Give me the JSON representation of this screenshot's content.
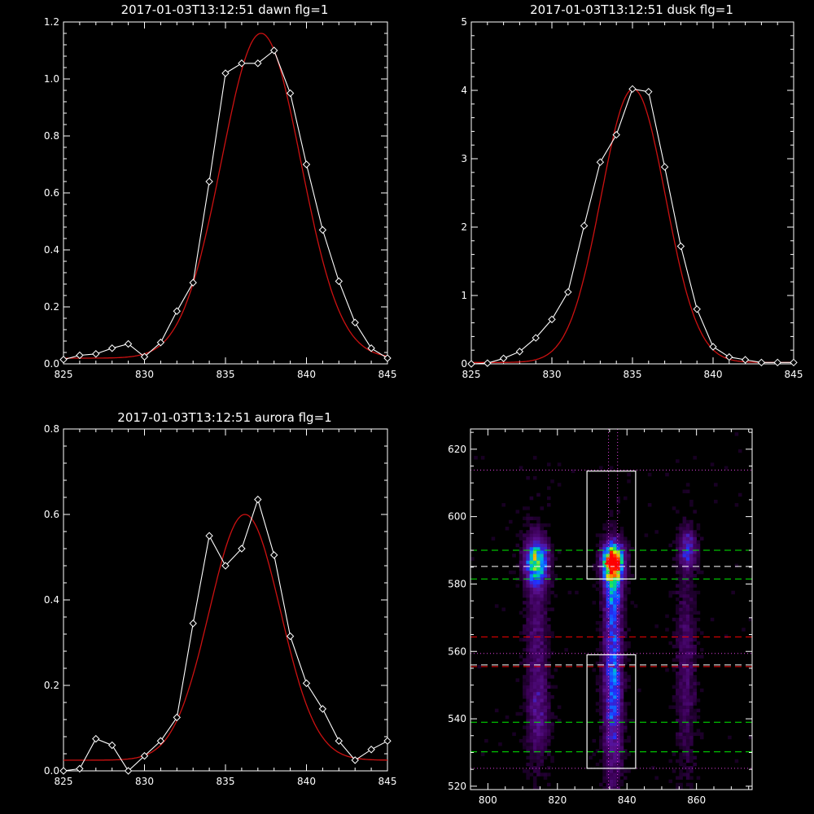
{
  "colors": {
    "background": "#000000",
    "axes": "#ffffff",
    "observed": "#ffffff",
    "fit": "#cc1111"
  },
  "chart_data": [
    {
      "type": "line",
      "title": "2017-01-03T13:12:51 dawn flg=1",
      "xlim": [
        825,
        845
      ],
      "ylim": [
        0,
        1.2
      ],
      "xticks": [
        "825",
        "830",
        "835",
        "840",
        "845"
      ],
      "yticks": [
        "0.0",
        "0.2",
        "0.4",
        "0.6",
        "0.8",
        "1.0",
        "1.2"
      ],
      "series": [
        {
          "role": "observed",
          "color": "#ffffff",
          "marker": "diamond",
          "x": [
            825,
            826,
            827,
            828,
            829,
            830,
            831,
            832,
            833,
            834,
            835,
            836,
            837,
            838,
            839,
            840,
            841,
            842,
            843,
            844,
            845
          ],
          "y": [
            0.015,
            0.03,
            0.035,
            0.055,
            0.07,
            0.025,
            0.075,
            0.185,
            0.285,
            0.64,
            1.02,
            1.055,
            1.055,
            1.1,
            0.95,
            0.7,
            0.47,
            0.29,
            0.145,
            0.055,
            0.02
          ]
        },
        {
          "role": "fit",
          "color": "#cc1111",
          "model": "gaussian",
          "amplitude": 1.14,
          "center": 837.2,
          "sigma": 2.45,
          "baseline": 0.02
        }
      ]
    },
    {
      "type": "line",
      "title": "2017-01-03T13:12:51 dusk flg=1",
      "xlim": [
        825,
        845
      ],
      "ylim": [
        0,
        5
      ],
      "xticks": [
        "825",
        "830",
        "835",
        "840",
        "845"
      ],
      "yticks": [
        "0",
        "1",
        "2",
        "3",
        "4",
        "5"
      ],
      "series": [
        {
          "role": "observed",
          "color": "#ffffff",
          "marker": "diamond",
          "x": [
            825,
            826,
            827,
            828,
            829,
            830,
            831,
            832,
            833,
            834,
            835,
            836,
            837,
            838,
            839,
            840,
            841,
            842,
            843,
            844,
            845
          ],
          "y": [
            0.0,
            0.01,
            0.08,
            0.18,
            0.38,
            0.65,
            1.05,
            2.02,
            2.95,
            3.35,
            4.02,
            3.98,
            2.88,
            1.72,
            0.8,
            0.25,
            0.1,
            0.06,
            0.02,
            0.02,
            0.02
          ]
        },
        {
          "role": "fit",
          "color": "#cc1111",
          "model": "gaussian",
          "amplitude": 4.0,
          "center": 835.05,
          "sigma": 2.0,
          "baseline": 0.02
        }
      ]
    },
    {
      "type": "line",
      "title": "2017-01-03T13:12:51 aurora flg=1",
      "xlim": [
        825,
        845
      ],
      "ylim": [
        0,
        0.8
      ],
      "xticks": [
        "825",
        "830",
        "835",
        "840",
        "845"
      ],
      "yticks": [
        "0.0",
        "0.2",
        "0.4",
        "0.6",
        "0.8"
      ],
      "series": [
        {
          "role": "observed",
          "color": "#ffffff",
          "marker": "diamond",
          "x": [
            825,
            826,
            827,
            828,
            829,
            830,
            831,
            832,
            833,
            834,
            835,
            836,
            837,
            838,
            839,
            840,
            841,
            842,
            843,
            844,
            845
          ],
          "y": [
            0.0,
            0.005,
            0.075,
            0.06,
            0.0,
            0.035,
            0.07,
            0.125,
            0.345,
            0.55,
            0.48,
            0.52,
            0.635,
            0.505,
            0.315,
            0.205,
            0.145,
            0.07,
            0.025,
            0.05,
            0.07
          ]
        },
        {
          "role": "fit",
          "color": "#cc1111",
          "model": "gaussian",
          "amplitude": 0.575,
          "center": 836.2,
          "sigma": 2.2,
          "baseline": 0.025
        }
      ]
    },
    {
      "type": "heatmap",
      "xlim": [
        795,
        876
      ],
      "ylim": [
        519,
        626
      ],
      "xticks": [
        "800",
        "820",
        "840",
        "860"
      ],
      "yticks": [
        "520",
        "540",
        "560",
        "580",
        "600",
        "620"
      ],
      "colormap": [
        "#000000",
        "#3a0055",
        "#5a1090",
        "#2030ff",
        "#00a0ff",
        "#00e070",
        "#e8e800",
        "#ff6000",
        "#ff0000"
      ],
      "peak_marker": {
        "x": 835,
        "y": 586,
        "color": "#ff0000"
      },
      "emission_blobs": [
        {
          "x": 813.5,
          "y": 586,
          "sx": 2.2,
          "sy": 4.5,
          "amp": 0.62
        },
        {
          "x": 813.5,
          "y": 560,
          "sx": 2.2,
          "sy": 22,
          "amp": 0.16
        },
        {
          "x": 814.5,
          "y": 540,
          "sx": 2.0,
          "sy": 7,
          "amp": 0.12
        },
        {
          "x": 835.5,
          "y": 586,
          "sx": 2.0,
          "sy": 3.6,
          "amp": 1.0
        },
        {
          "x": 835.5,
          "y": 552,
          "sx": 1.8,
          "sy": 20,
          "amp": 0.42
        },
        {
          "x": 835.5,
          "y": 578,
          "sx": 1.6,
          "sy": 5,
          "amp": 0.3
        },
        {
          "x": 857,
          "y": 590,
          "sx": 1.8,
          "sy": 4,
          "amp": 0.28
        },
        {
          "x": 856.5,
          "y": 555,
          "sx": 2.0,
          "sy": 22,
          "amp": 0.14
        }
      ],
      "boxes": [
        {
          "x": [
            828.5,
            842.5
          ],
          "y": [
            581.5,
            613.5
          ],
          "color": "#ffffff"
        },
        {
          "x": [
            828.5,
            842.5
          ],
          "y": [
            525.3,
            559.0
          ],
          "color": "#ffffff"
        }
      ],
      "hlines": [
        {
          "y": 613.8,
          "color": "#e040e0",
          "style": "dotted"
        },
        {
          "y": 590.0,
          "color": "#00ee00",
          "style": "dashed"
        },
        {
          "y": 585.2,
          "color": "#ffffff",
          "style": "dashed"
        },
        {
          "y": 581.5,
          "color": "#00ee00",
          "style": "dashed"
        },
        {
          "y": 564.3,
          "color": "#ee0000",
          "style": "dashed"
        },
        {
          "y": 559.4,
          "color": "#e040e0",
          "style": "dotted"
        },
        {
          "y": 556.0,
          "color": "#ffffff",
          "style": "dashed"
        },
        {
          "y": 555.5,
          "color": "#ee0000",
          "style": "dashed"
        },
        {
          "y": 539.0,
          "color": "#00ee00",
          "style": "dashed"
        },
        {
          "y": 530.2,
          "color": "#00ee00",
          "style": "dashed"
        },
        {
          "y": 525.3,
          "color": "#e040e0",
          "style": "dotted"
        }
      ],
      "vlines": [
        {
          "x": 834.7,
          "color": "#e040e0",
          "style": "dotted"
        },
        {
          "x": 837.3,
          "color": "#e040e0",
          "style": "dotted"
        }
      ]
    }
  ]
}
